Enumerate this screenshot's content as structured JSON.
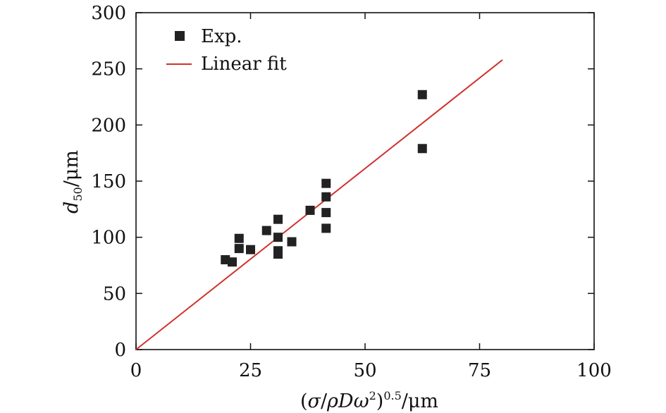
{
  "chart_data": {
    "type": "scatter",
    "title": "",
    "xlabel": "(σ/ρDω²)^0.5/μm",
    "ylabel": "d50/μm",
    "xlim": [
      0,
      100
    ],
    "ylim": [
      0,
      300
    ],
    "x_ticks": [
      0,
      25,
      50,
      75,
      100
    ],
    "y_ticks": [
      0,
      50,
      100,
      150,
      200,
      250,
      300
    ],
    "x_tick_labels": [
      "0",
      "25",
      "50",
      "75",
      "100"
    ],
    "y_tick_labels": [
      "0",
      "50",
      "100",
      "150",
      "200",
      "250",
      "300"
    ],
    "grid": false,
    "legend_position": "top-left",
    "series": [
      {
        "name": "Exp.",
        "kind": "scatter",
        "marker": "square",
        "color": "#222222",
        "points": [
          [
            19.5,
            80
          ],
          [
            21,
            78
          ],
          [
            22.5,
            99
          ],
          [
            22.5,
            90
          ],
          [
            25,
            89
          ],
          [
            28.5,
            106
          ],
          [
            31,
            116
          ],
          [
            31,
            100
          ],
          [
            31,
            88
          ],
          [
            31,
            85
          ],
          [
            34,
            96
          ],
          [
            38,
            124
          ],
          [
            41.5,
            148
          ],
          [
            41.5,
            136
          ],
          [
            41.5,
            122
          ],
          [
            41.5,
            108
          ],
          [
            62.5,
            227
          ],
          [
            62.5,
            179
          ]
        ]
      },
      {
        "name": "Linear fit",
        "kind": "line",
        "color": "#d0312d",
        "x": [
          0,
          80
        ],
        "y": [
          0,
          258
        ]
      }
    ]
  }
}
